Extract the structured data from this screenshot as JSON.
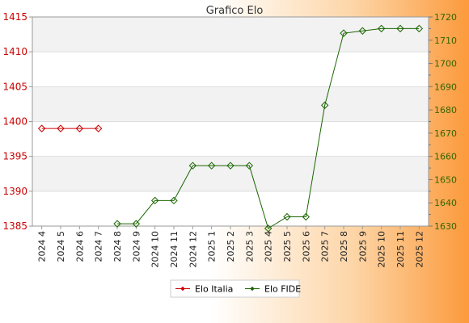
{
  "chart_data": {
    "type": "line",
    "title": "Grafico Elo",
    "categories": [
      "2024 4",
      "2024 5",
      "2024 6",
      "2024 7",
      "2024 8",
      "2024 9",
      "2024 10",
      "2024 11",
      "2024 12",
      "2025 1",
      "2025 2",
      "2025 3",
      "2025 4",
      "2025 5",
      "2025 6",
      "2025 7",
      "2025 8",
      "2025 9",
      "2025 10",
      "2025 11",
      "2025 12"
    ],
    "left_axis": {
      "ylim": [
        1385,
        1415
      ],
      "ticks": [
        1385,
        1390,
        1395,
        1400,
        1405,
        1410,
        1415
      ],
      "color": "#cc0000"
    },
    "right_axis": {
      "ylim": [
        1630,
        1720
      ],
      "ticks": [
        1630,
        1640,
        1650,
        1660,
        1670,
        1680,
        1690,
        1700,
        1710,
        1720
      ],
      "color": "#336600"
    },
    "grid": true,
    "legend_position": "bottom",
    "series": [
      {
        "name": "Elo Italia",
        "axis": "left",
        "color": "#cc0000",
        "values": [
          1399,
          1399,
          1399,
          1399,
          null,
          null,
          null,
          null,
          null,
          null,
          null,
          null,
          null,
          null,
          null,
          null,
          null,
          null,
          null,
          null,
          null
        ]
      },
      {
        "name": "Elo FIDE",
        "axis": "right",
        "color": "#1a6600",
        "values": [
          null,
          null,
          null,
          null,
          1631,
          1631,
          1641,
          1641,
          1656,
          1656,
          1656,
          1656,
          1629,
          1634,
          1634,
          1682,
          1713,
          1714,
          1715,
          1715,
          1715
        ]
      }
    ]
  }
}
